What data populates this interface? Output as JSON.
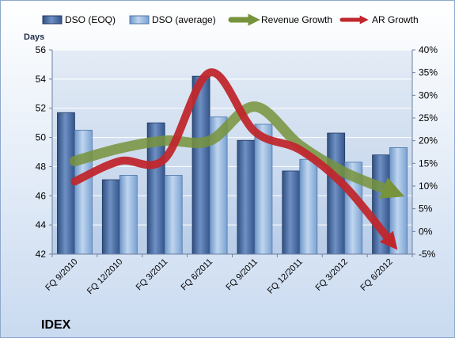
{
  "chart_data": {
    "type": "bar",
    "title": "IDEX",
    "ylabel": "Days",
    "categories": [
      "FQ 9/2010",
      "FQ 12/2010",
      "FQ 3/2011",
      "FQ 6/2011",
      "FQ 9/2011",
      "FQ 12/2011",
      "FQ 3/2012",
      "FQ 6/2012"
    ],
    "ylim": [
      42,
      56
    ],
    "yticks": [
      42,
      44,
      46,
      48,
      50,
      52,
      54,
      56
    ],
    "ylim_right": [
      -5,
      40
    ],
    "yticks_right": [
      "-5%",
      "0%",
      "5%",
      "10%",
      "15%",
      "20%",
      "25%",
      "30%",
      "35%",
      "40%"
    ],
    "legend_placement": "top",
    "series": [
      {
        "name": "DSO (EOQ)",
        "kind": "bar",
        "axis": "left",
        "color": "#4A6EA6",
        "values": [
          51.7,
          47.1,
          51.0,
          54.2,
          49.8,
          47.7,
          50.3,
          48.8
        ]
      },
      {
        "name": "DSO (average)",
        "kind": "bar",
        "axis": "left",
        "color": "#8DB3E2",
        "values": [
          50.5,
          47.4,
          47.4,
          51.4,
          50.9,
          48.5,
          48.3,
          49.3
        ]
      },
      {
        "name": "Revenue Growth",
        "kind": "line",
        "axis": "right",
        "unit": "%",
        "color": "#77933C",
        "values": [
          15.5,
          18.3,
          20.0,
          20.0,
          27.5,
          19.0,
          13.0,
          9.0
        ]
      },
      {
        "name": "AR Growth",
        "kind": "line",
        "axis": "right",
        "unit": "%",
        "color": "#C0272D",
        "values": [
          11.0,
          15.5,
          16.0,
          35.0,
          22.0,
          18.0,
          10.0,
          -2.0
        ]
      }
    ]
  }
}
